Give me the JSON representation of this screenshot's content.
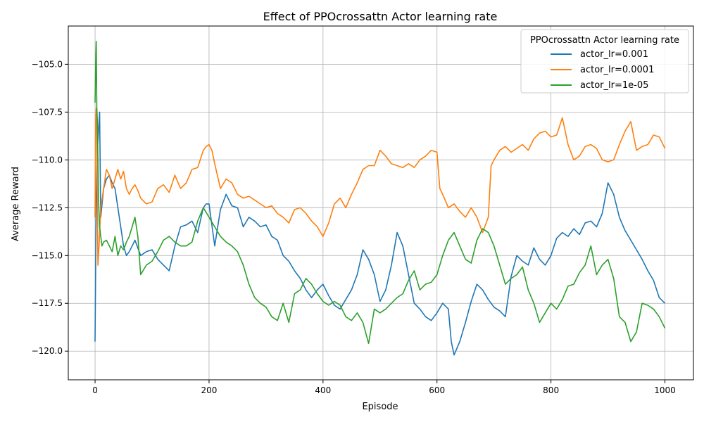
{
  "chart_data": {
    "type": "line",
    "title": "Effect of PPOcrossattn Actor learning rate",
    "xlabel": "Episode",
    "ylabel": "Average Reward",
    "xlim": [
      -47,
      1050
    ],
    "ylim": [
      -121.5,
      -103
    ],
    "xticks": [
      0,
      200,
      400,
      600,
      800,
      1000
    ],
    "yticks": [
      -120.0,
      -117.5,
      -115.0,
      -112.5,
      -110.0,
      -107.5,
      -105.0
    ],
    "xtick_labels": [
      "0",
      "200",
      "400",
      "600",
      "800",
      "1000"
    ],
    "ytick_labels": [
      "−120.0",
      "−117.5",
      "−115.0",
      "−112.5",
      "−110.0",
      "−107.5",
      "−105.0"
    ],
    "grid": true,
    "legend": {
      "title": "PPOcrossattn Actor learning rate",
      "placement": "top-right"
    },
    "series": [
      {
        "name": "actor_lr=0.001",
        "color": "#1f77b4",
        "x": [
          0,
          2,
          4,
          6,
          8,
          10,
          15,
          20,
          25,
          30,
          35,
          40,
          45,
          50,
          55,
          60,
          65,
          70,
          80,
          90,
          100,
          110,
          120,
          130,
          140,
          150,
          160,
          170,
          180,
          190,
          195,
          200,
          210,
          220,
          230,
          240,
          250,
          260,
          270,
          280,
          290,
          300,
          310,
          320,
          330,
          340,
          350,
          360,
          370,
          380,
          390,
          400,
          410,
          420,
          430,
          440,
          450,
          460,
          470,
          480,
          490,
          500,
          510,
          520,
          530,
          540,
          550,
          560,
          570,
          580,
          590,
          600,
          610,
          620,
          625,
          630,
          640,
          650,
          660,
          670,
          680,
          690,
          700,
          710,
          720,
          730,
          740,
          750,
          760,
          770,
          780,
          790,
          800,
          810,
          820,
          830,
          840,
          850,
          860,
          870,
          880,
          890,
          900,
          910,
          920,
          930,
          940,
          950,
          960,
          970,
          980,
          990,
          1000
        ],
        "y": [
          -119.5,
          -112,
          -109.5,
          -108.5,
          -107.5,
          -113,
          -111.5,
          -111,
          -110.8,
          -111.2,
          -111.5,
          -112.5,
          -113.5,
          -114.5,
          -115,
          -114.8,
          -114.5,
          -114.2,
          -115,
          -114.8,
          -114.7,
          -115.2,
          -115.5,
          -115.8,
          -114.5,
          -113.5,
          -113.4,
          -113.2,
          -113.8,
          -112.5,
          -112.3,
          -112.3,
          -114.5,
          -112.6,
          -111.8,
          -112.4,
          -112.5,
          -113.5,
          -113,
          -113.2,
          -113.5,
          -113.4,
          -114,
          -114.2,
          -115,
          -115.3,
          -115.8,
          -116.2,
          -116.8,
          -117.2,
          -116.8,
          -116.5,
          -117.1,
          -117.6,
          -117.8,
          -117.3,
          -116.8,
          -116,
          -114.7,
          -115.2,
          -116,
          -117.4,
          -116.8,
          -115.5,
          -113.8,
          -114.5,
          -116,
          -117.5,
          -117.8,
          -118.2,
          -118.4,
          -118,
          -117.5,
          -117.8,
          -119.5,
          -120.2,
          -119.5,
          -118.5,
          -117.4,
          -116.5,
          -116.8,
          -117.3,
          -117.7,
          -117.9,
          -118.2,
          -116.1,
          -115,
          -115.3,
          -115.5,
          -114.6,
          -115.2,
          -115.5,
          -115,
          -114.1,
          -113.8,
          -114,
          -113.6,
          -113.9,
          -113.3,
          -113.2,
          -113.5,
          -112.8,
          -111.2,
          -111.8,
          -113,
          -113.7,
          -114.2,
          -114.7,
          -115.2,
          -115.8,
          -116.3,
          -117.2,
          -117.5
        ]
      },
      {
        "name": "actor_lr=0.0001",
        "color": "#ff7f0e",
        "x": [
          0,
          1,
          2,
          3,
          5,
          7,
          10,
          15,
          20,
          25,
          30,
          35,
          40,
          45,
          50,
          55,
          60,
          65,
          70,
          75,
          80,
          90,
          100,
          110,
          120,
          130,
          140,
          150,
          160,
          170,
          180,
          190,
          195,
          200,
          205,
          210,
          220,
          230,
          240,
          250,
          260,
          270,
          280,
          290,
          300,
          310,
          320,
          330,
          340,
          350,
          360,
          370,
          380,
          390,
          400,
          410,
          420,
          430,
          440,
          450,
          460,
          470,
          480,
          490,
          500,
          510,
          520,
          530,
          540,
          550,
          560,
          570,
          580,
          590,
          600,
          605,
          610,
          620,
          630,
          640,
          650,
          660,
          670,
          680,
          690,
          695,
          700,
          710,
          720,
          730,
          740,
          750,
          760,
          770,
          780,
          790,
          800,
          810,
          820,
          830,
          840,
          850,
          860,
          870,
          880,
          890,
          900,
          910,
          920,
          930,
          940,
          950,
          960,
          970,
          980,
          990,
          1000
        ],
        "y": [
          -113,
          -108,
          -107.3,
          -108.5,
          -115.5,
          -114.5,
          -112.5,
          -111.5,
          -110.5,
          -110.8,
          -111.5,
          -111,
          -110.5,
          -111,
          -110.6,
          -111.5,
          -111.8,
          -111.5,
          -111.3,
          -111.6,
          -112,
          -112.3,
          -112.2,
          -111.5,
          -111.3,
          -111.7,
          -110.8,
          -111.5,
          -111.2,
          -110.5,
          -110.4,
          -109.5,
          -109.3,
          -109.2,
          -109.5,
          -110.2,
          -111.5,
          -111,
          -111.2,
          -111.8,
          -112,
          -111.9,
          -112.1,
          -112.3,
          -112.5,
          -112.4,
          -112.8,
          -113,
          -113.3,
          -112.6,
          -112.5,
          -112.8,
          -113.2,
          -113.5,
          -114,
          -113.3,
          -112.3,
          -112,
          -112.5,
          -111.8,
          -111.2,
          -110.5,
          -110.3,
          -110.3,
          -109.5,
          -109.8,
          -110.2,
          -110.3,
          -110.4,
          -110.2,
          -110.4,
          -110,
          -109.8,
          -109.5,
          -109.6,
          -111.5,
          -111.8,
          -112.5,
          -112.3,
          -112.7,
          -113,
          -112.5,
          -113,
          -113.8,
          -113,
          -110.3,
          -110,
          -109.5,
          -109.3,
          -109.6,
          -109.4,
          -109.2,
          -109.5,
          -108.9,
          -108.6,
          -108.5,
          -108.8,
          -108.7,
          -107.8,
          -109.2,
          -110,
          -109.8,
          -109.3,
          -109.2,
          -109.4,
          -110,
          -110.1,
          -110,
          -109.2,
          -108.5,
          -108,
          -109.5,
          -109.3,
          -109.2,
          -108.7,
          -108.8,
          -109.4
        ]
      },
      {
        "name": "actor_lr=1e-05",
        "color": "#2ca02c",
        "x": [
          0,
          1,
          2,
          3,
          4,
          6,
          8,
          10,
          12,
          15,
          20,
          25,
          30,
          35,
          40,
          45,
          50,
          55,
          60,
          65,
          70,
          75,
          80,
          90,
          100,
          110,
          120,
          130,
          140,
          150,
          160,
          170,
          180,
          190,
          200,
          210,
          220,
          230,
          240,
          250,
          260,
          270,
          280,
          290,
          300,
          310,
          320,
          330,
          340,
          350,
          360,
          370,
          380,
          390,
          400,
          410,
          420,
          430,
          440,
          450,
          460,
          470,
          480,
          490,
          500,
          510,
          520,
          530,
          540,
          550,
          560,
          570,
          580,
          590,
          600,
          610,
          620,
          630,
          640,
          650,
          660,
          670,
          680,
          690,
          700,
          710,
          720,
          730,
          740,
          750,
          760,
          770,
          780,
          790,
          800,
          810,
          820,
          830,
          840,
          850,
          860,
          870,
          880,
          890,
          900,
          910,
          920,
          930,
          940,
          950,
          960,
          970,
          980,
          990,
          1000
        ],
        "y": [
          -107,
          -105,
          -103.8,
          -107.3,
          -108,
          -112,
          -113.5,
          -114,
          -114.5,
          -114.3,
          -114.2,
          -114.5,
          -114.8,
          -114,
          -115,
          -114.5,
          -114.7,
          -114.3,
          -114,
          -113.5,
          -113,
          -114,
          -116,
          -115.5,
          -115.3,
          -114.8,
          -114.2,
          -114,
          -114.3,
          -114.5,
          -114.5,
          -114.3,
          -113.2,
          -112.5,
          -113,
          -113.5,
          -114,
          -114.3,
          -114.5,
          -114.8,
          -115.5,
          -116.5,
          -117.2,
          -117.5,
          -117.7,
          -118.2,
          -118.4,
          -117.5,
          -118.5,
          -117,
          -116.8,
          -116.2,
          -116.5,
          -117,
          -117.4,
          -117.6,
          -117.4,
          -117.6,
          -118.2,
          -118.4,
          -118,
          -118.5,
          -119.6,
          -117.8,
          -118,
          -117.8,
          -117.5,
          -117.2,
          -117,
          -116.3,
          -115.8,
          -116.8,
          -116.5,
          -116.4,
          -116,
          -115,
          -114.2,
          -113.8,
          -114.5,
          -115.2,
          -115.4,
          -114.2,
          -113.6,
          -113.8,
          -114.5,
          -115.5,
          -116.5,
          -116.2,
          -116,
          -115.6,
          -116.8,
          -117.5,
          -118.5,
          -118,
          -117.5,
          -117.8,
          -117.3,
          -116.6,
          -116.5,
          -115.9,
          -115.5,
          -114.5,
          -116,
          -115.5,
          -115.2,
          -116.2,
          -118.2,
          -118.5,
          -119.5,
          -119,
          -117.5,
          -117.6,
          -117.8,
          -118.2,
          -118.8
        ]
      }
    ]
  }
}
